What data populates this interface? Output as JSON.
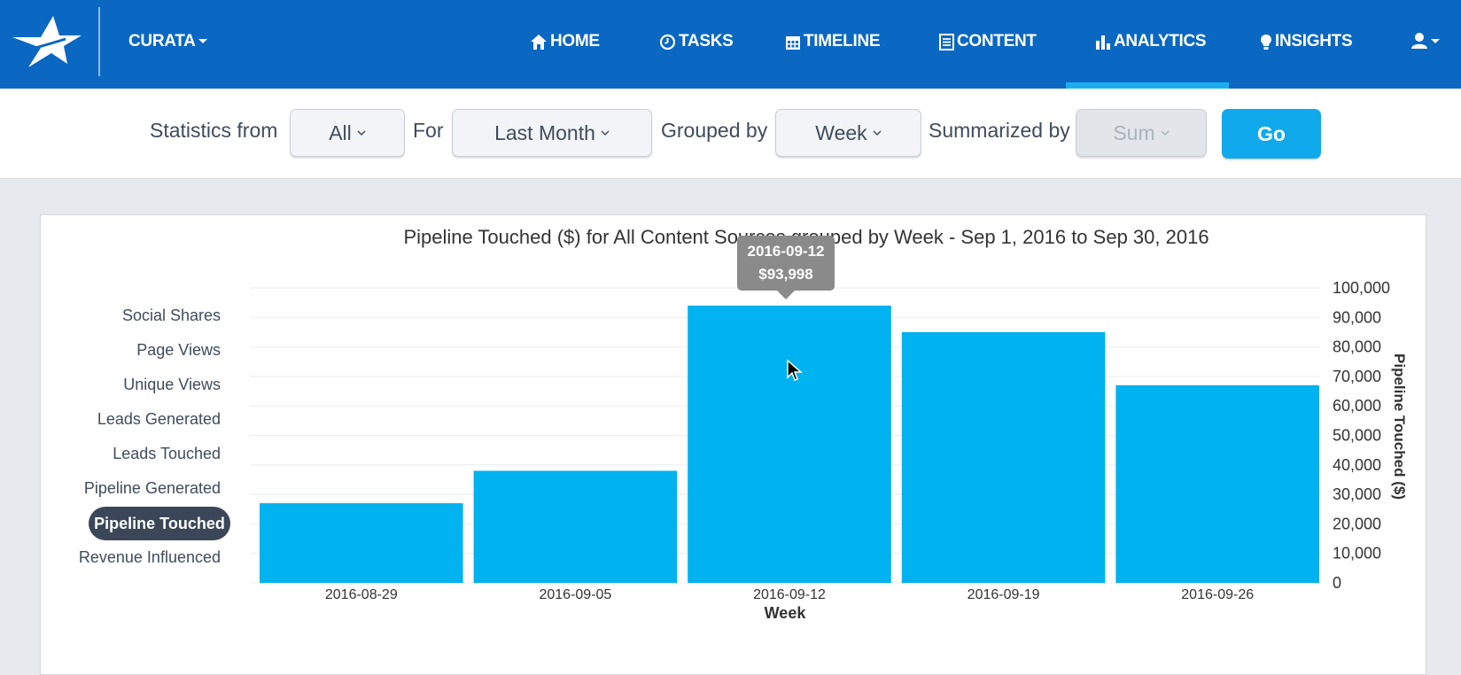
{
  "nav": {
    "brand": "CURATA",
    "items": [
      {
        "id": "home",
        "label": "HOME",
        "icon": "home-icon"
      },
      {
        "id": "tasks",
        "label": "TASKS",
        "icon": "clock-icon"
      },
      {
        "id": "timeline",
        "label": "TIMELINE",
        "icon": "calendar-icon"
      },
      {
        "id": "content",
        "label": "CONTENT",
        "icon": "document-icon"
      },
      {
        "id": "analytics",
        "label": "ANALYTICS",
        "icon": "bar-chart-icon",
        "active": true
      },
      {
        "id": "insights",
        "label": "INSIGHTS",
        "icon": "lightbulb-icon"
      }
    ],
    "user_icon": "user-icon",
    "colors": {
      "bar": "#0a67c2",
      "active_underline": "#1aaef0"
    }
  },
  "filters": {
    "statistics_from_label": "Statistics from",
    "statistics_from_value": "All",
    "for_label": "For",
    "for_value": "Last Month",
    "grouped_by_label": "Grouped by",
    "grouped_by_value": "Week",
    "summarized_by_label": "Summarized by",
    "summarized_by_value": "Sum",
    "go_label": "Go"
  },
  "metrics": [
    "Social Shares",
    "Page Views",
    "Unique Views",
    "Leads Generated",
    "Leads Touched",
    "Pipeline Generated",
    "Pipeline Touched",
    "Revenue Influenced"
  ],
  "active_metric": "Pipeline Touched",
  "tooltip": {
    "date": "2016-09-12",
    "value": "$93,998"
  },
  "chart_data": {
    "type": "bar",
    "title": "Pipeline Touched ($) for All Content Sources grouped by Week - Sep 1, 2016 to Sep 30, 2016",
    "xlabel": "Week",
    "ylabel": "Pipeline Touched ($)",
    "categories": [
      "2016-08-29",
      "2016-09-05",
      "2016-09-12",
      "2016-09-19",
      "2016-09-26"
    ],
    "values": [
      27000,
      38000,
      93998,
      85000,
      67000
    ],
    "ylim": [
      0,
      100000
    ],
    "yticks": [
      "0",
      "10,000",
      "20,000",
      "30,000",
      "40,000",
      "50,000",
      "60,000",
      "70,000",
      "80,000",
      "90,000",
      "100,000"
    ],
    "y_axis_side": "right",
    "grid": true,
    "bar_color": "#00b2ef"
  }
}
